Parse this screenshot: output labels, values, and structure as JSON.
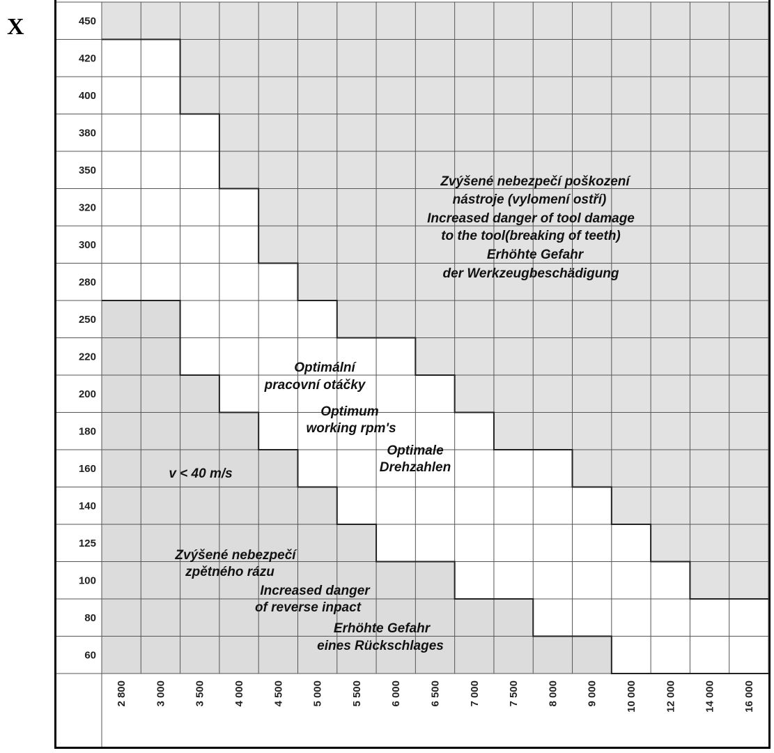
{
  "page": {
    "corner_label": "X"
  },
  "chart_data": {
    "type": "heatmap",
    "y_ticks": [
      "450",
      "420",
      "400",
      "380",
      "350",
      "320",
      "300",
      "280",
      "250",
      "220",
      "200",
      "180",
      "160",
      "140",
      "125",
      "100",
      "80",
      "60"
    ],
    "x_ticks": [
      "2 800",
      "3 000",
      "3 500",
      "4 000",
      "4 500",
      "5 000",
      "5 500",
      "6 000",
      "6 500",
      "7 000",
      "7 500",
      "8 000",
      "9 000",
      "10 000",
      "12 000",
      "14 000",
      "16 000"
    ],
    "optimal_range": [
      {
        "x": "2 800",
        "y_max": "420",
        "y_min": "280"
      },
      {
        "x": "3 000",
        "y_max": "420",
        "y_min": "280"
      },
      {
        "x": "3 500",
        "y_max": "380",
        "y_min": "220"
      },
      {
        "x": "4 000",
        "y_max": "320",
        "y_min": "200"
      },
      {
        "x": "4 500",
        "y_max": "280",
        "y_min": "180"
      },
      {
        "x": "5 000",
        "y_max": "250",
        "y_min": "160"
      },
      {
        "x": "5 500",
        "y_max": "220",
        "y_min": "140"
      },
      {
        "x": "6 000",
        "y_max": "220",
        "y_min": "125"
      },
      {
        "x": "6 500",
        "y_max": "200",
        "y_min": "125"
      },
      {
        "x": "7 000",
        "y_max": "180",
        "y_min": "100"
      },
      {
        "x": "7 500",
        "y_max": "160",
        "y_min": "100"
      },
      {
        "x": "8 000",
        "y_max": "160",
        "y_min": "80"
      },
      {
        "x": "9 000",
        "y_max": "140",
        "y_min": "80"
      },
      {
        "x": "10 000",
        "y_max": "125",
        "y_min": "60"
      },
      {
        "x": "12 000",
        "y_max": "100",
        "y_min": "60"
      },
      {
        "x": "14 000",
        "y_max": "80",
        "y_min": "60"
      },
      {
        "x": "16 000",
        "y_max": "80",
        "y_min": "60"
      }
    ],
    "regions": {
      "upper": {
        "color": "#e2e2e2",
        "text": [
          "Zvýšené nebezpečí poškození",
          "nástroje (vylomení ostří)",
          "Increased danger of tool damage",
          "to the tool(breaking of teeth)",
          "Erhöhte Gefahr",
          "der Werkzeugbeschädigung"
        ]
      },
      "optimal": {
        "color": "#ffffff",
        "text": [
          "Optimální",
          "pracovní otáčky",
          "Optimum",
          "working rpm's",
          "Optimale",
          "Drehzahlen"
        ]
      },
      "lower": {
        "color": "#dcdcdc",
        "text": [
          "Zvýšené nebezpečí",
          "zpětného rázu",
          "Increased danger",
          "of reverse inpact",
          "Erhöhte Gefahr",
          "eines Rückschlages"
        ]
      }
    },
    "speed_label": "v < 40 m/s",
    "colors": {
      "grid": "#555555",
      "boundary": "#222222"
    },
    "title": "",
    "xlabel": "",
    "ylabel": ""
  }
}
